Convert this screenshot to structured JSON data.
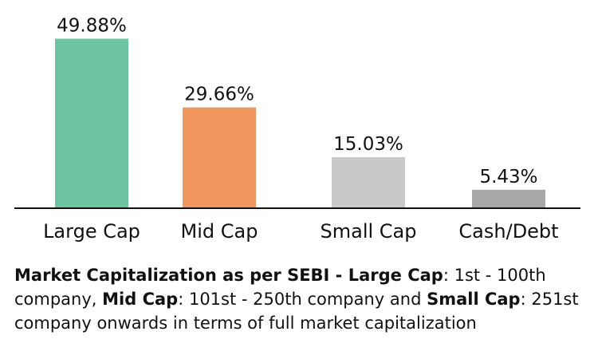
{
  "chart_data": {
    "type": "bar",
    "categories": [
      "Large Cap",
      "Mid Cap",
      "Small Cap",
      "Cash/Debt"
    ],
    "values": [
      49.88,
      29.66,
      15.03,
      5.43
    ],
    "value_labels": [
      "49.88%",
      "29.66%",
      "15.03%",
      "5.43%"
    ],
    "colors": [
      "#6cc5a0",
      "#f0965f",
      "#c9c9c9",
      "#a8a8a8"
    ],
    "ylim": [
      0,
      50
    ],
    "grid": false,
    "legend": "none"
  },
  "footnote": {
    "heading": "Market Capitalization as per SEBI - ",
    "large_label": "Large Cap",
    "large_text": ": 1st - 100th company, ",
    "mid_label": "Mid Cap",
    "mid_text": ": 101st - 250th company and ",
    "small_label": "Small Cap",
    "small_text": ": 251st company onwards in terms of full market capitalization"
  }
}
